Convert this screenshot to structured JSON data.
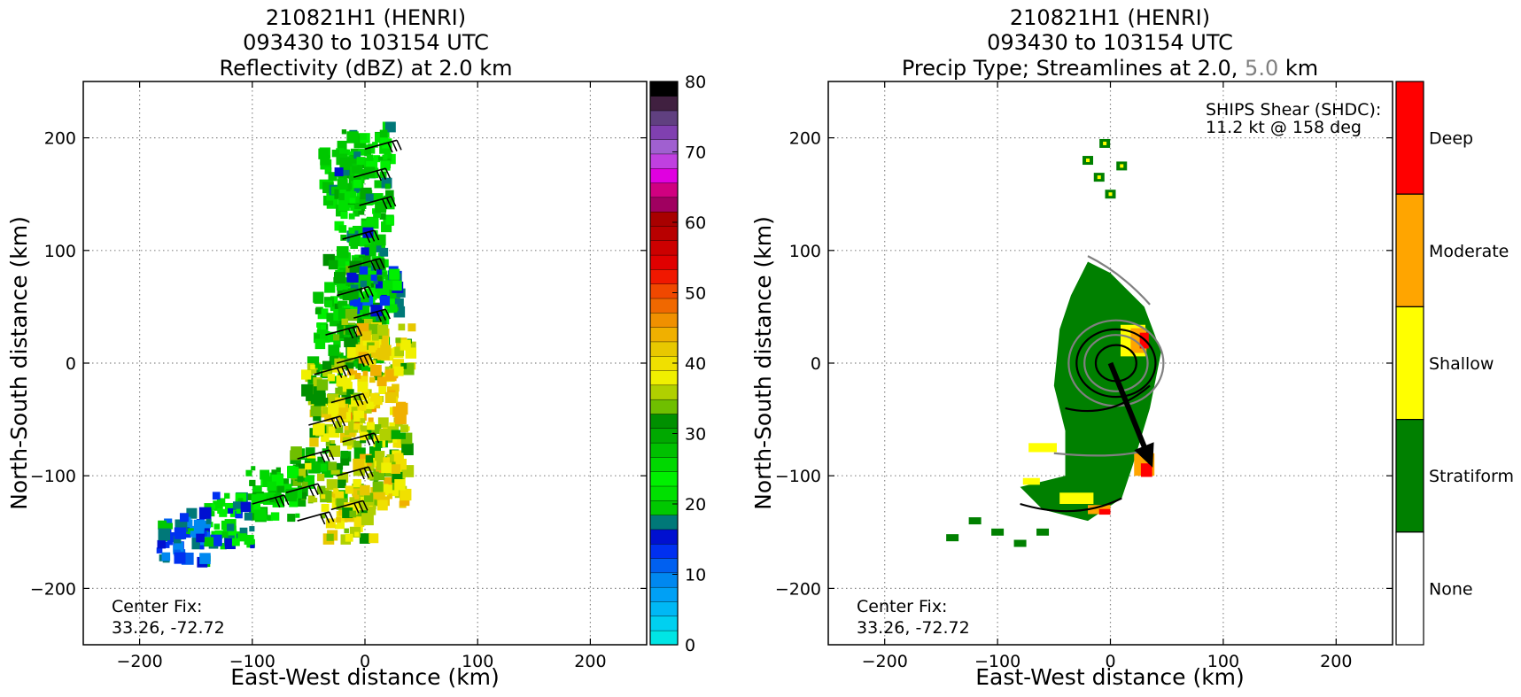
{
  "chart_data": [
    {
      "type": "heatmap",
      "title_lines": [
        "210821H1 (HENRI)",
        "093430 to 103154 UTC",
        "Reflectivity (dBZ) at 2.0 km"
      ],
      "xlabel": "East-West distance (km)",
      "ylabel": "North-South distance (km)",
      "xlim": [
        -250,
        250
      ],
      "ylim": [
        -250,
        250
      ],
      "xticks": [
        -200,
        -100,
        0,
        100,
        200
      ],
      "yticks": [
        -200,
        -100,
        0,
        100,
        200
      ],
      "xtick_labels": [
        "−200",
        "−100",
        "0",
        "100",
        "200"
      ],
      "ytick_labels": [
        "−200",
        "−100",
        "0",
        "100",
        "200"
      ],
      "grid": true,
      "annotation_lines": [
        "Center Fix:",
        "33.26, -72.72"
      ],
      "colorbar": {
        "min": 0,
        "max": 80,
        "ticks": [
          0,
          10,
          20,
          30,
          40,
          50,
          60,
          70,
          80
        ],
        "colors": [
          "#00e5e5",
          "#00d0f0",
          "#00b8f5",
          "#00a0f5",
          "#0088f0",
          "#0060f0",
          "#0030f0",
          "#0010d0",
          "#007878",
          "#00c800",
          "#00e000",
          "#00f000",
          "#00d800",
          "#00c000",
          "#00a800",
          "#009000",
          "#6fbf00",
          "#b0d000",
          "#f0f000",
          "#f0e000",
          "#e8c800",
          "#f0b000",
          "#f09000",
          "#f06800",
          "#f04800",
          "#f01800",
          "#e00000",
          "#cc0000",
          "#b80000",
          "#a80000",
          "#a00060",
          "#d00080",
          "#e000e0",
          "#c040e0",
          "#a060d0",
          "#8040b0",
          "#604080",
          "#402040",
          "#000000"
        ]
      },
      "precip_cells": [
        {
          "x": 0,
          "y": 190,
          "dbz": 24
        },
        {
          "x": -15,
          "y": 165,
          "dbz": 22
        },
        {
          "x": 0,
          "y": 140,
          "dbz": 24
        },
        {
          "x": -5,
          "y": 95,
          "dbz": 22
        },
        {
          "x": -10,
          "y": 70,
          "dbz": 27
        },
        {
          "x": 10,
          "y": 60,
          "dbz": 18
        },
        {
          "x": -20,
          "y": 40,
          "dbz": 25
        },
        {
          "x": -5,
          "y": 20,
          "dbz": 32
        },
        {
          "x": 20,
          "y": 10,
          "dbz": 38
        },
        {
          "x": -30,
          "y": -20,
          "dbz": 33
        },
        {
          "x": 10,
          "y": -30,
          "dbz": 40
        },
        {
          "x": -25,
          "y": -55,
          "dbz": 37
        },
        {
          "x": 15,
          "y": -75,
          "dbz": 34
        },
        {
          "x": -40,
          "y": -100,
          "dbz": 32
        },
        {
          "x": 15,
          "y": -105,
          "dbz": 38
        },
        {
          "x": -80,
          "y": -115,
          "dbz": 25
        },
        {
          "x": -15,
          "y": -135,
          "dbz": 37
        },
        {
          "x": -120,
          "y": -140,
          "dbz": 20
        },
        {
          "x": -160,
          "y": -155,
          "dbz": 14
        }
      ],
      "wind_barbs_present": true
    },
    {
      "type": "heatmap",
      "title_lines": [
        "210821H1 (HENRI)",
        "093430 to 103154 UTC"
      ],
      "title_line3_parts": [
        "Precip Type; Streamlines at 2.0, ",
        "5.0",
        " km"
      ],
      "xlabel": "East-West distance (km)",
      "ylabel": "North-South distance (km)",
      "xlim": [
        -250,
        250
      ],
      "ylim": [
        -250,
        250
      ],
      "xticks": [
        -200,
        -100,
        0,
        100,
        200
      ],
      "yticks": [
        -200,
        -100,
        0,
        100,
        200
      ],
      "xtick_labels": [
        "−200",
        "−100",
        "0",
        "100",
        "200"
      ],
      "ytick_labels": [
        "−200",
        "−100",
        "0",
        "100",
        "200"
      ],
      "grid": true,
      "annotation_lines": [
        "Center Fix:",
        "33.26, -72.72"
      ],
      "shear_lines": [
        "SHIPS Shear (SHDC):",
        "11.2 kt @ 158 deg"
      ],
      "shear_vector": {
        "magnitude_kt": 11.2,
        "direction_deg": 158
      },
      "categories": [
        {
          "label": "Deep",
          "color": "#ff0000"
        },
        {
          "label": "Moderate",
          "color": "#ffa500"
        },
        {
          "label": "Shallow",
          "color": "#ffff00"
        },
        {
          "label": "Stratiform",
          "color": "#008000"
        },
        {
          "label": "None",
          "color": "#ffffff"
        }
      ],
      "streamline_colors": {
        "2.0 km": "#000000",
        "5.0 km": "#808080"
      }
    }
  ]
}
